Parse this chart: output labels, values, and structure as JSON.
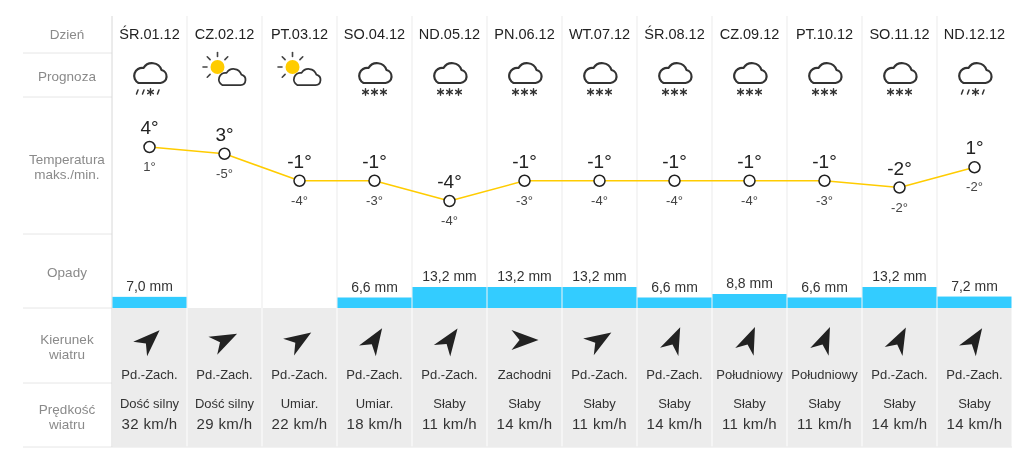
{
  "chart_data": [
    {
      "type": "line",
      "xlabel": "Dzień",
      "ylabel": "Temperatura maks./min.",
      "categories": [
        "ŚR.01.12",
        "CZ.02.12",
        "PT.03.12",
        "SO.04.12",
        "ND.05.12",
        "PN.06.12",
        "WT.07.12",
        "ŚR.08.12",
        "CZ.09.12",
        "PT.10.12",
        "SO.11.12",
        "ND.12.12"
      ],
      "values": [
        4,
        3,
        -1,
        -1,
        -4,
        -1,
        -1,
        -1,
        -1,
        -1,
        -2,
        1
      ],
      "value_labels": [
        "4°",
        "3°",
        "-1°",
        "-1°",
        "-4°",
        "-1°",
        "-1°",
        "-1°",
        "-1°",
        "-1°",
        "-2°",
        "1°"
      ],
      "color": "#ffcc00",
      "marker": "circle",
      "annotations": [
        "1°",
        "-5°",
        "-4°",
        "-3°",
        "-4°",
        "-3°",
        "-4°",
        "-4°",
        "-4°",
        "-3°",
        "-2°",
        "-2°"
      ]
    },
    {
      "type": "other",
      "ylabel": "Prognoza"
    },
    {
      "type": "bar",
      "ylabel": "Opady",
      "categories": [
        null,
        null,
        null,
        null,
        null,
        null,
        null,
        null,
        null,
        null,
        null,
        null
      ],
      "values": [
        7.0,
        null,
        null,
        6.6,
        13.2,
        13.2,
        13.2,
        6.6,
        8.8,
        6.6,
        13.2,
        7.2
      ],
      "value_labels": [
        "7,0 mm",
        null,
        null,
        "6,6 mm",
        "13,2 mm",
        "13,2 mm",
        "13,2 mm",
        "6,6 mm",
        "8,8 mm",
        "6,6 mm",
        "13,2 mm",
        "7,2 mm"
      ],
      "color": "#33ccff"
    },
    {
      "type": "other",
      "ylabel": "Kierunek wiatru",
      "annotations": [
        "Pd.-Zach.",
        "Pd.-Zach.",
        "Pd.-Zach.",
        "Pd.-Zach.",
        "Pd.-Zach.",
        "Zachodni",
        "Pd.-Zach.",
        "Pd.-Zach.",
        "Południowy",
        "Południowy",
        "Pd.-Zach.",
        "Pd.-Zach."
      ]
    },
    {
      "type": "other",
      "ylabel": "Prędkość wiatru",
      "values": [
        32,
        29,
        22,
        18,
        11,
        14,
        11,
        14,
        11,
        11,
        14,
        14
      ],
      "value_labels": [
        "32 km/h",
        "29 km/h",
        "22 km/h",
        "18 km/h",
        "11 km/h",
        "14 km/h",
        "11 km/h",
        "14 km/h",
        "11 km/h",
        "11 km/h",
        "14 km/h",
        "14 km/h"
      ],
      "annotations": [
        "Dość silny",
        "Dość silny",
        "Umiar.",
        "Umiar.",
        "Słaby",
        "Słaby",
        "Słaby",
        "Słaby",
        "Słaby",
        "Słaby",
        "Słaby",
        "Słaby"
      ]
    }
  ]
}
